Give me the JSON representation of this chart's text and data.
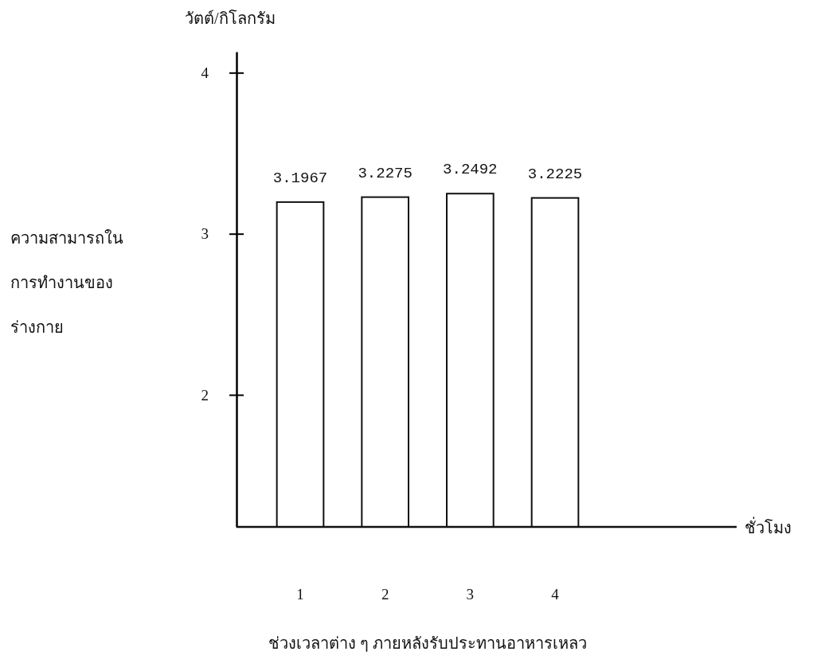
{
  "chart_data": {
    "type": "bar",
    "xlabel": "ช่วงเวลาต่าง ๆ ภายหลังรับประทานอาหารเหลว",
    "ylabel": "ความสามารถใน\nการทำงานของ\nร่างกาย",
    "annotations": [
      "วัตต์/กิโลกรัม",
      "ชั่วโมง"
    ],
    "categories": [
      "1",
      "2",
      "3",
      "4"
    ],
    "values": [
      3.1967,
      3.2275,
      3.2492,
      3.2225
    ],
    "color": "#ffffff",
    "data_labels": true,
    "ylim": [
      1.18,
      4.13
    ],
    "yticks": [
      2,
      3,
      4
    ],
    "grid": false
  }
}
